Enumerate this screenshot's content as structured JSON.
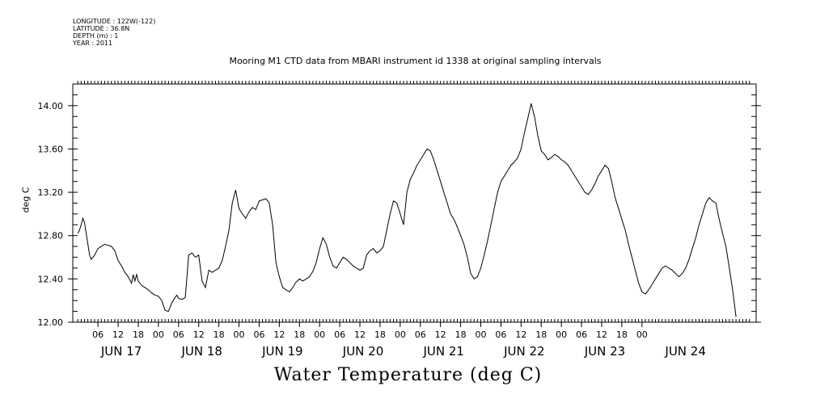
{
  "header_info": {
    "longitude": "LONGITUDE : 122W(-122)",
    "latitude": "LATITUDE : 36.8N",
    "depth": "DEPTH (m) : 1",
    "year": "YEAR : 2011"
  },
  "chart_data": {
    "type": "line",
    "title": "Mooring M1 CTD data from MBARI instrument id 1338 at original sampling intervals",
    "xlabel": "Water Temperature (deg C)",
    "ylabel": "deg C",
    "ylim": [
      12.0,
      14.2
    ],
    "y_ticks": [
      "12.00",
      "12.40",
      "12.80",
      "13.20",
      "13.60",
      "14.00"
    ],
    "x_time_ticks": [
      "06",
      "12",
      "18",
      "00",
      "06",
      "12",
      "18",
      "00",
      "06",
      "12",
      "18",
      "00",
      "06",
      "12",
      "18",
      "00",
      "06",
      "12",
      "18",
      "00",
      "06",
      "12",
      "18",
      "00",
      "06",
      "12",
      "18",
      "00"
    ],
    "day_labels": [
      "JUN 17",
      "JUN 18",
      "JUN 19",
      "JUN 20",
      "JUN 21",
      "JUN 22",
      "JUN 23",
      "JUN 24"
    ],
    "series": [
      {
        "hours_from_jun17_00": [
          0.0,
          0.5,
          1.0,
          1.5,
          2.0,
          2.5,
          3.0,
          3.5,
          4.0,
          5.0,
          6.0,
          7.0,
          8.0,
          9.0,
          10.0,
          11.0,
          12.0,
          13.0,
          14.0,
          15.0,
          16.0,
          16.5,
          17.0,
          17.5,
          18.0,
          19.0,
          20.0,
          21.0,
          22.0,
          23.0,
          24.0,
          25.0,
          26.0,
          27.0,
          28.0,
          29.0,
          29.5,
          30.0,
          31.0,
          32.0,
          33.0,
          34.0,
          35.0,
          36.0,
          37.0,
          38.0,
          39.0,
          40.0,
          41.0,
          42.0,
          43.0,
          44.0,
          45.0,
          46.0,
          47.0,
          48.0,
          49.0,
          50.0,
          51.0,
          52.0,
          53.0,
          54.0,
          55.0,
          56.0,
          57.0,
          58.0,
          59.0,
          60.0,
          61.0,
          62.0,
          63.0,
          64.0,
          65.0,
          66.0,
          67.0,
          68.0,
          69.0,
          70.0,
          71.0,
          72.0,
          73.0,
          74.0,
          75.0,
          76.0,
          77.0,
          78.0,
          79.0,
          80.0,
          81.0,
          82.0,
          83.0,
          84.0,
          85.0,
          86.0,
          87.0,
          88.0,
          89.0,
          90.0,
          91.0,
          92.0,
          93.0,
          94.0,
          95.0,
          96.0,
          97.0,
          98.0,
          99.0,
          100.0,
          101.0,
          102.0,
          103.0,
          104.0,
          105.0,
          106.0,
          107.0,
          108.0,
          109.0,
          110.0,
          111.0,
          112.0,
          113.0,
          114.0,
          115.0,
          116.0,
          117.0,
          118.0,
          119.0,
          120.0,
          121.0,
          122.0,
          123.0,
          124.0,
          125.0,
          126.0,
          127.0,
          128.0,
          129.0,
          130.0,
          131.0,
          132.0,
          133.0,
          134.0,
          135.0,
          136.0,
          137.0,
          138.0,
          139.0,
          140.0,
          141.0,
          142.0,
          143.0,
          144.0,
          145.0,
          146.0,
          147.0,
          148.0,
          149.0,
          150.0,
          151.0,
          152.0,
          153.0,
          154.0,
          155.0,
          156.0,
          157.0,
          158.0,
          159.0,
          160.0,
          161.0,
          162.0,
          163.0,
          164.0,
          165.0,
          166.0,
          167.0,
          168.0,
          169.0,
          170.0,
          171.0,
          172.0,
          173.0,
          174.0,
          175.0,
          176.0,
          177.0,
          178.0,
          179.0,
          180.0,
          181.0,
          182.0,
          183.0,
          184.0,
          185.0,
          186.0,
          187.0,
          188.0,
          189.0,
          190.0,
          191.0,
          192.0,
          193.0,
          194.0,
          195.0,
          196.0,
          197.0,
          198.0,
          199.0,
          200.0
        ],
        "values": [
          12.82,
          12.85,
          12.9,
          12.96,
          12.92,
          12.82,
          12.72,
          12.62,
          12.58,
          12.62,
          12.68,
          12.7,
          12.72,
          12.71,
          12.7,
          12.66,
          12.57,
          12.52,
          12.46,
          12.42,
          12.36,
          12.44,
          12.38,
          12.44,
          12.38,
          12.34,
          12.32,
          12.3,
          12.27,
          12.25,
          12.24,
          12.2,
          12.11,
          12.1,
          12.18,
          12.23,
          12.25,
          12.22,
          12.21,
          12.23,
          12.62,
          12.64,
          12.6,
          12.62,
          12.38,
          12.32,
          12.48,
          12.46,
          12.48,
          12.5,
          12.57,
          12.7,
          12.85,
          13.1,
          13.22,
          13.05,
          13.0,
          12.96,
          13.02,
          13.06,
          13.04,
          13.12,
          13.13,
          13.14,
          13.1,
          12.9,
          12.55,
          12.42,
          12.32,
          12.3,
          12.28,
          12.32,
          12.37,
          12.4,
          12.38,
          12.4,
          12.42,
          12.47,
          12.55,
          12.68,
          12.78,
          12.72,
          12.6,
          12.52,
          12.5,
          12.55,
          12.6,
          12.58,
          12.55,
          12.52,
          12.5,
          12.48,
          12.5,
          12.62,
          12.66,
          12.68,
          12.64,
          12.66,
          12.7,
          12.85,
          13.0,
          13.12,
          13.1,
          13.0,
          12.9,
          13.2,
          13.32,
          13.38,
          13.45,
          13.5,
          13.55,
          13.6,
          13.58,
          13.5,
          13.4,
          13.3,
          13.2,
          13.1,
          13.0,
          12.95,
          12.88,
          12.8,
          12.72,
          12.6,
          12.45,
          12.4,
          12.42,
          12.5,
          12.62,
          12.75,
          12.9,
          13.05,
          13.2,
          13.3,
          13.35,
          13.4,
          13.45,
          13.48,
          13.52,
          13.6,
          13.75,
          13.88,
          14.02,
          13.9,
          13.72,
          13.58,
          13.55,
          13.5,
          13.52,
          13.55,
          13.53,
          13.5,
          13.48,
          13.45,
          13.4,
          13.35,
          13.3,
          13.25,
          13.2,
          13.18,
          13.22,
          13.28,
          13.35,
          13.4,
          13.45,
          13.42,
          13.3,
          13.15,
          13.05,
          12.95,
          12.85,
          12.72,
          12.6,
          12.48,
          12.36,
          12.28,
          12.26,
          12.3,
          12.35,
          12.4,
          12.45,
          12.5,
          12.52,
          12.5,
          12.48,
          12.45,
          12.42,
          12.45,
          12.5,
          12.58,
          12.68,
          12.78,
          12.9,
          13.0,
          13.1,
          13.15,
          13.12,
          13.1,
          12.95,
          12.82,
          12.7,
          12.5,
          12.3,
          12.05
        ]
      }
    ],
    "x_range_hours": [
      -1.5,
      202
    ],
    "grid": false
  }
}
